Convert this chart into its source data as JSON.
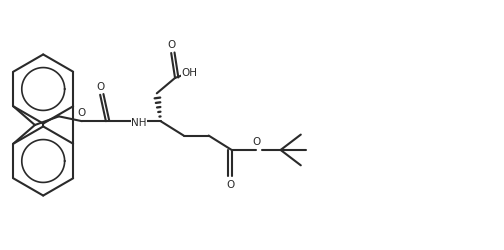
{
  "bg": "#ffffff",
  "lc": "#2a2a2a",
  "lw": 1.5,
  "fw": 5.04,
  "fh": 2.5,
  "dpi": 100,
  "xlim": [
    0,
    10.5
  ],
  "ylim": [
    0,
    5.0
  ]
}
